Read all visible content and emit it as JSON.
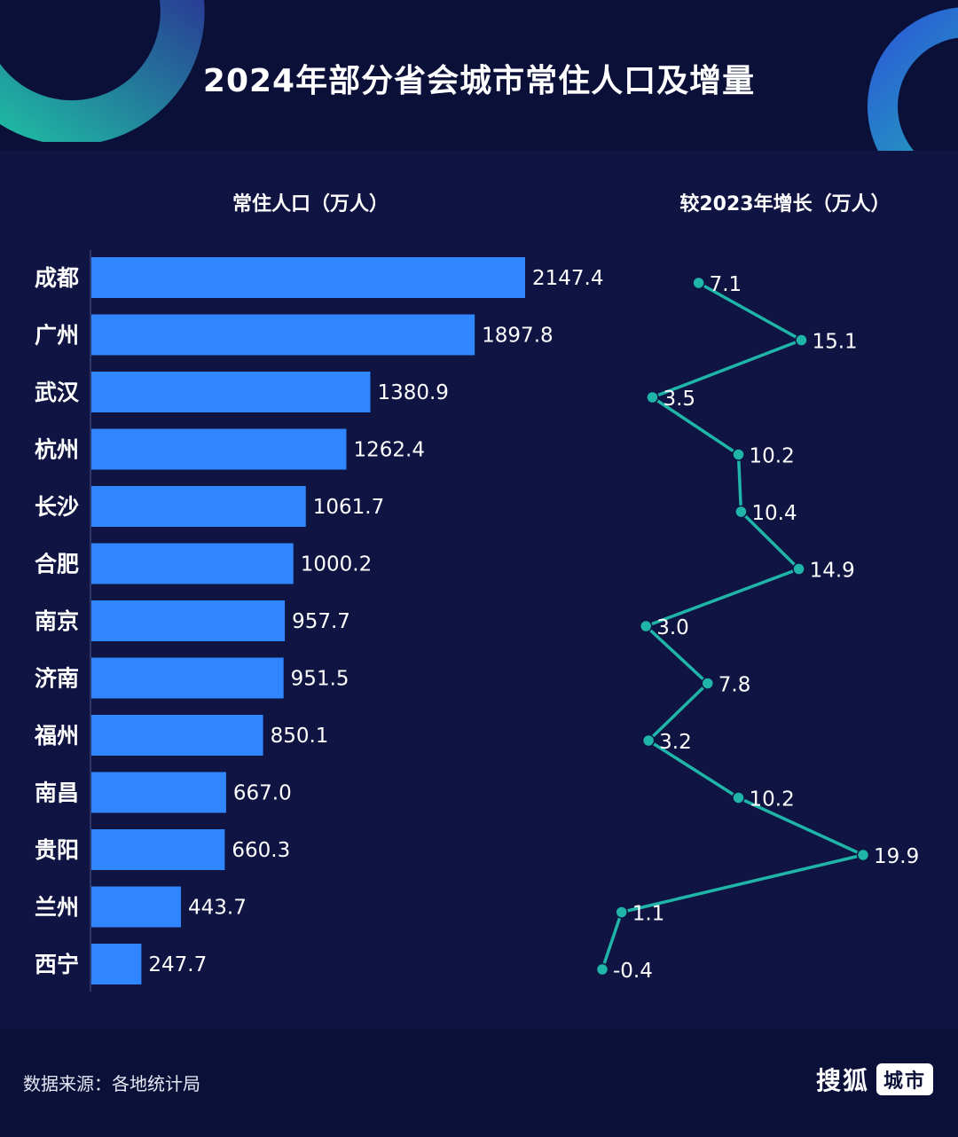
{
  "title": "2024年部分省会城市常住人口及增量",
  "subtitles": {
    "left": "常住人口（万人）",
    "right": "较2023年增长（万人）"
  },
  "footer": {
    "source": "数据来源：各地统计局",
    "brand_name": "搜狐",
    "brand_tag": "城市"
  },
  "colors": {
    "background": "#0b1039",
    "bar": "#2f86ff",
    "line": "#1fb5a8",
    "text": "#ffffff"
  },
  "chart_data": [
    {
      "type": "bar",
      "orientation": "horizontal",
      "title": "常住人口（万人）",
      "categories": [
        "成都",
        "广州",
        "武汉",
        "杭州",
        "长沙",
        "合肥",
        "南京",
        "济南",
        "福州",
        "南昌",
        "贵阳",
        "兰州",
        "西宁"
      ],
      "values": [
        2147.4,
        1897.8,
        1380.9,
        1262.4,
        1061.7,
        1000.2,
        957.7,
        951.5,
        850.1,
        667.0,
        660.3,
        443.7,
        247.7
      ],
      "value_labels": [
        "2147.4",
        "1897.8",
        "1380.9",
        "1262.4",
        "1061.7",
        "1000.2",
        "957.7",
        "951.5",
        "850.1",
        "667.0",
        "660.3",
        "443.7",
        "247.7"
      ],
      "grid": false
    },
    {
      "type": "line",
      "orientation": "vertical",
      "title": "较2023年增长（万人）",
      "categories": [
        "成都",
        "广州",
        "武汉",
        "杭州",
        "长沙",
        "合肥",
        "南京",
        "济南",
        "福州",
        "南昌",
        "贵阳",
        "兰州",
        "西宁"
      ],
      "values": [
        7.1,
        15.1,
        3.5,
        10.2,
        10.4,
        14.9,
        3.0,
        7.8,
        3.2,
        10.2,
        19.9,
        1.1,
        -0.4
      ],
      "value_labels": [
        "7.1",
        "15.1",
        "3.5",
        "10.2",
        "10.4",
        "14.9",
        "3.0",
        "7.8",
        "3.2",
        "10.2",
        "19.9",
        "1.1",
        "-0.4"
      ],
      "grid": false
    }
  ]
}
